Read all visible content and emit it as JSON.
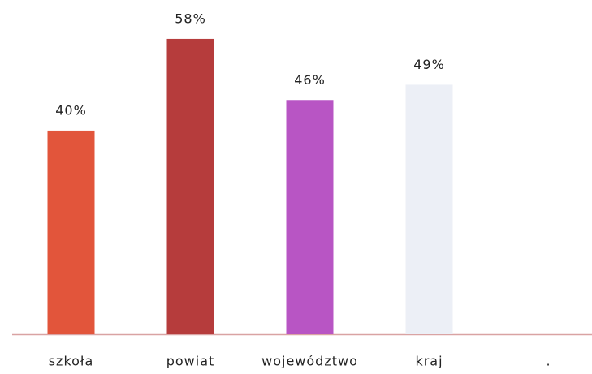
{
  "chart_data": {
    "type": "bar",
    "categories": [
      "szkoła",
      "powiat",
      "województwo",
      "kraj",
      "."
    ],
    "values": [
      40,
      58,
      46,
      49,
      null
    ],
    "value_labels": [
      "40%",
      "58%",
      "46%",
      "49%",
      null
    ],
    "colors": [
      "#e2553b",
      "#b63c3c",
      "#b855c4",
      "#eceff6",
      "#ffffff"
    ],
    "ylim": [
      0,
      65
    ]
  }
}
